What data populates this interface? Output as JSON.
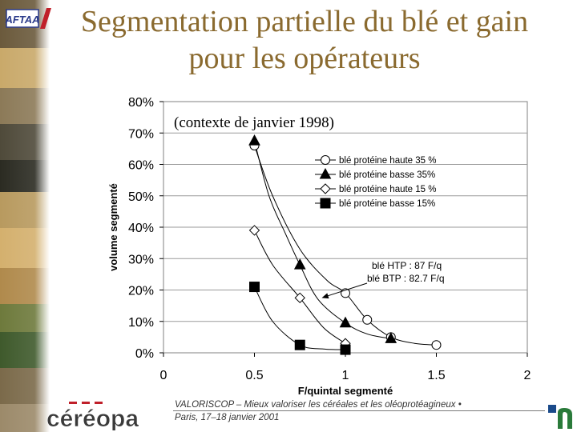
{
  "slide": {
    "title_line1": "Segmentation partielle du blé et gain",
    "title_line2": "pour les opérateurs",
    "logo_left_text": "AFTAA",
    "logo_bottom_text": "céréopa",
    "footer_line1": "VALORISCOP  –  Mieux valoriser les céréales et les oléoprotéagineux  •",
    "footer_line2": "Paris, 17–18 janvier 2001"
  },
  "colors": {
    "title": "#8a6a2f",
    "plot_bg": "#ffffff",
    "grid": "#9a9a9a",
    "series": "#000000"
  },
  "chart_data": {
    "type": "scatter",
    "subtitle": "(contexte de janvier 1998)",
    "xlabel": "F/quintal segmenté",
    "ylabel": "volume segmenté",
    "xlim": [
      0,
      2
    ],
    "ylim": [
      0,
      0.8
    ],
    "x_ticks": [
      0,
      0.5,
      1,
      1.5,
      2
    ],
    "x_tick_labels": [
      "0",
      "0.5",
      "1",
      "1.5",
      "2"
    ],
    "y_ticks": [
      0,
      0.1,
      0.2,
      0.3,
      0.4,
      0.5,
      0.6,
      0.7,
      0.8
    ],
    "y_tick_labels": [
      "0%",
      "10%",
      "20%",
      "30%",
      "40%",
      "50%",
      "60%",
      "70%",
      "80%"
    ],
    "grid": "horizontal",
    "legend_position": "top-right",
    "series": [
      {
        "name": "blé protéine haute 35 %",
        "marker": "circle-open",
        "points": [
          [
            0.5,
            0.66
          ],
          [
            1.0,
            0.19
          ],
          [
            1.12,
            0.105
          ],
          [
            1.25,
            0.05
          ],
          [
            1.5,
            0.025
          ]
        ],
        "curve": [
          [
            0.5,
            0.66
          ],
          [
            0.6,
            0.5
          ],
          [
            0.75,
            0.33
          ],
          [
            0.9,
            0.23
          ],
          [
            1.0,
            0.19
          ],
          [
            1.12,
            0.105
          ],
          [
            1.25,
            0.05
          ],
          [
            1.38,
            0.03
          ],
          [
            1.5,
            0.025
          ]
        ]
      },
      {
        "name": "blé protéine basse 35%",
        "marker": "triangle-filled",
        "points": [
          [
            0.5,
            0.675
          ],
          [
            0.75,
            0.28
          ],
          [
            1.0,
            0.095
          ],
          [
            1.25,
            0.045
          ]
        ],
        "curve": [
          [
            0.5,
            0.675
          ],
          [
            0.58,
            0.5
          ],
          [
            0.67,
            0.38
          ],
          [
            0.75,
            0.28
          ],
          [
            0.85,
            0.17
          ],
          [
            1.0,
            0.095
          ],
          [
            1.12,
            0.06
          ],
          [
            1.25,
            0.045
          ]
        ]
      },
      {
        "name": "blé protéine haute 15 %",
        "marker": "diamond-open",
        "points": [
          [
            0.5,
            0.39
          ],
          [
            0.75,
            0.175
          ],
          [
            1.0,
            0.03
          ]
        ],
        "curve": [
          [
            0.5,
            0.39
          ],
          [
            0.6,
            0.28
          ],
          [
            0.75,
            0.175
          ],
          [
            0.88,
            0.08
          ],
          [
            1.0,
            0.03
          ]
        ]
      },
      {
        "name": "blé protéine basse 15%",
        "marker": "square-filled",
        "points": [
          [
            0.5,
            0.21
          ],
          [
            0.75,
            0.025
          ],
          [
            1.0,
            0.01
          ]
        ],
        "curve": [
          [
            0.5,
            0.21
          ],
          [
            0.6,
            0.1
          ],
          [
            0.75,
            0.025
          ],
          [
            0.88,
            0.012
          ],
          [
            1.0,
            0.01
          ]
        ]
      }
    ],
    "annotations": [
      {
        "text": "blé HTP : 87 F/q",
        "arrow_to": [
          0.87,
          0.175
        ]
      },
      {
        "text": "blé BTP : 82.7 F/q",
        "arrow_to": null
      }
    ]
  }
}
